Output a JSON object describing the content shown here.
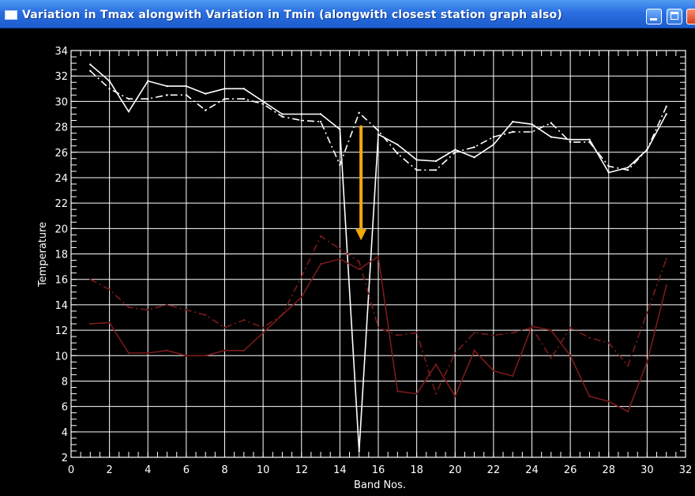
{
  "window": {
    "title": "Variation in Tmax alongwith Variation in Tmin (alongwith closest station graph also)",
    "icon": "window-icon",
    "controls": [
      "minimize-icon",
      "maximize-icon",
      "close-icon"
    ]
  },
  "colors": {
    "titlebar": "#2a6ee0",
    "background": "#000000",
    "tmax": "#ffffff",
    "tmin": "#7a1a1a",
    "arrow": "#f2a90a"
  },
  "chart_data": {
    "type": "line",
    "title": "",
    "xlabel": "Band Nos.",
    "ylabel": "Temperature",
    "xlim": [
      0,
      32
    ],
    "ylim": [
      2,
      34
    ],
    "x_ticks": [
      0,
      2,
      4,
      6,
      8,
      10,
      12,
      14,
      16,
      18,
      20,
      22,
      24,
      26,
      28,
      30,
      32
    ],
    "y_ticks": [
      2,
      4,
      6,
      8,
      10,
      12,
      14,
      16,
      18,
      20,
      22,
      24,
      26,
      28,
      30,
      32,
      34
    ],
    "grid": true,
    "x": [
      1,
      2,
      3,
      4,
      5,
      6,
      7,
      8,
      9,
      10,
      11,
      12,
      13,
      14,
      15,
      16,
      17,
      18,
      19,
      20,
      21,
      22,
      23,
      24,
      25,
      26,
      27,
      28,
      29,
      30,
      31
    ],
    "series": [
      {
        "color": "#ffffff",
        "dash": "solid",
        "values": [
          32.9,
          31.6,
          29.2,
          31.6,
          31.2,
          31.2,
          30.6,
          31.0,
          31.0,
          30.0,
          29.0,
          29.0,
          29.0,
          27.8,
          2.5,
          27.4,
          26.6,
          25.4,
          25.3,
          26.2,
          25.6,
          26.6,
          28.4,
          28.2,
          27.2,
          27.0,
          27.0,
          24.4,
          24.8,
          26.2,
          29.0
        ]
      },
      {
        "color": "#ffffff",
        "dash": "dashdot",
        "values": [
          32.4,
          31.0,
          30.2,
          30.2,
          30.5,
          30.5,
          29.3,
          30.2,
          30.2,
          29.8,
          28.8,
          28.5,
          28.4,
          25.0,
          29.1,
          27.7,
          25.9,
          24.6,
          24.6,
          26.0,
          26.4,
          27.2,
          27.6,
          27.6,
          28.3,
          26.8,
          26.8,
          24.9,
          24.6,
          26.2,
          29.6
        ]
      },
      {
        "color": "#7a1a1a",
        "dash": "solid",
        "values": [
          12.5,
          12.6,
          10.2,
          10.2,
          10.4,
          10.0,
          10.0,
          10.4,
          10.4,
          11.8,
          13.2,
          14.6,
          17.2,
          17.6,
          16.8,
          17.8,
          7.2,
          7.0,
          9.3,
          6.8,
          10.4,
          8.8,
          8.4,
          12.3,
          12.0,
          10.0,
          6.8,
          6.4,
          5.6,
          9.5,
          15.5
        ]
      },
      {
        "color": "#7a1a1a",
        "dash": "dashdot",
        "values": [
          16.0,
          15.2,
          13.8,
          13.6,
          14.0,
          13.6,
          13.2,
          12.2,
          12.8,
          12.2,
          13.2,
          16.2,
          19.4,
          18.4,
          17.4,
          12.2,
          11.6,
          11.8,
          7.0,
          10.2,
          11.8,
          11.6,
          11.8,
          12.2,
          9.8,
          12.2,
          11.4,
          11.0,
          9.2,
          13.4,
          17.6
        ]
      }
    ],
    "annotations": [
      {
        "type": "arrow",
        "color": "#f2a90a",
        "from": [
          15.1,
          28.0
        ],
        "to": [
          15.1,
          19.2
        ]
      }
    ]
  }
}
